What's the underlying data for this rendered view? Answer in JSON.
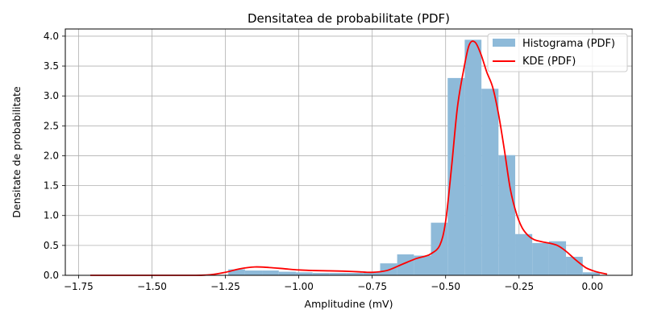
{
  "chart_data": {
    "type": "histogram+line",
    "title": "Densitatea de probabilitate (PDF)",
    "xlabel": "Amplitudine (mV)",
    "ylabel": "Densitate de probabilitate",
    "xlim": [
      -1.795,
      0.135
    ],
    "ylim": [
      0,
      4.12
    ],
    "xticks": [
      -1.75,
      -1.5,
      -1.25,
      -1.0,
      -0.75,
      -0.5,
      -0.25,
      0.0
    ],
    "xtick_labels": [
      "−1.75",
      "−1.50",
      "−1.25",
      "−1.00",
      "−0.75",
      "−0.50",
      "−0.25",
      "0.00"
    ],
    "yticks": [
      0,
      0.5,
      1.0,
      1.5,
      2.0,
      2.5,
      3.0,
      3.5,
      4.0
    ],
    "ytick_labels": [
      "0.0",
      "0.5",
      "1.0",
      "1.5",
      "2.0",
      "2.5",
      "3.0",
      "3.5",
      "4.0"
    ],
    "grid": true,
    "legend_position": "top-right",
    "series": [
      {
        "name": "Histograma (PDF)",
        "kind": "histogram",
        "color": "#8ebad9",
        "bin_edges": [
          -1.24,
          -1.183,
          -1.125,
          -1.068,
          -1.01,
          -0.953,
          -0.895,
          -0.838,
          -0.78,
          -0.723,
          -0.665,
          -0.608,
          -0.55,
          -0.493,
          -0.435,
          -0.378,
          -0.32,
          -0.263,
          -0.205,
          -0.148,
          -0.09,
          -0.033,
          0.025
        ],
        "values": [
          0.1,
          0.08,
          0.08,
          0.06,
          0.05,
          0.04,
          0.04,
          0.04,
          0.06,
          0.2,
          0.35,
          0.33,
          0.88,
          3.3,
          3.94,
          3.12,
          2.01,
          0.69,
          0.54,
          0.57,
          0.31,
          0.05
        ]
      },
      {
        "name": "KDE (PDF)",
        "kind": "line",
        "color": "#ff0000",
        "x": [
          -1.71,
          -1.5,
          -1.35,
          -1.3,
          -1.25,
          -1.2,
          -1.15,
          -1.1,
          -1.05,
          -1.0,
          -0.95,
          -0.9,
          -0.85,
          -0.8,
          -0.75,
          -0.7,
          -0.65,
          -0.6,
          -0.57,
          -0.55,
          -0.52,
          -0.5,
          -0.48,
          -0.46,
          -0.44,
          -0.42,
          -0.4,
          -0.38,
          -0.36,
          -0.34,
          -0.32,
          -0.3,
          -0.28,
          -0.26,
          -0.24,
          -0.22,
          -0.2,
          -0.18,
          -0.16,
          -0.14,
          -0.12,
          -0.1,
          -0.08,
          -0.06,
          -0.04,
          -0.02,
          0.0,
          0.02,
          0.05
        ],
        "y": [
          0.0,
          0.0,
          0.0,
          0.01,
          0.05,
          0.11,
          0.14,
          0.13,
          0.11,
          0.09,
          0.08,
          0.075,
          0.07,
          0.06,
          0.05,
          0.08,
          0.18,
          0.28,
          0.32,
          0.36,
          0.5,
          0.9,
          1.8,
          2.8,
          3.4,
          3.85,
          3.9,
          3.7,
          3.4,
          3.15,
          2.7,
          2.1,
          1.45,
          1.05,
          0.8,
          0.67,
          0.6,
          0.57,
          0.55,
          0.53,
          0.5,
          0.44,
          0.36,
          0.27,
          0.19,
          0.12,
          0.08,
          0.05,
          0.02
        ]
      }
    ]
  }
}
